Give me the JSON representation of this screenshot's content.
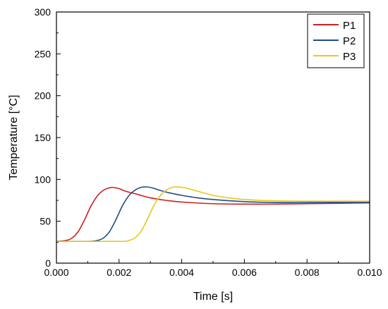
{
  "chart_data": {
    "type": "line",
    "xlabel": "Time [s]",
    "ylabel": "Temperature [°C]",
    "xlim": [
      0,
      0.01
    ],
    "ylim": [
      0,
      300
    ],
    "x_ticks": [
      "0.000",
      "0.002",
      "0.004",
      "0.006",
      "0.008",
      "0.010"
    ],
    "y_ticks": [
      "0",
      "50",
      "100",
      "150",
      "200",
      "250",
      "300"
    ],
    "grid": false,
    "legend_position": "top-right",
    "series": [
      {
        "name": "P1",
        "color": "#cc1f1f",
        "x": [
          0,
          0.0003,
          0.0005,
          0.0007,
          0.0009,
          0.0011,
          0.0013,
          0.0015,
          0.0017,
          0.0018,
          0.002,
          0.0022,
          0.0025,
          0.003,
          0.0035,
          0.004,
          0.005,
          0.006,
          0.007,
          0.008,
          0.009,
          0.01
        ],
        "y": [
          26,
          27,
          30,
          38,
          52,
          68,
          80,
          87,
          90,
          90.5,
          89,
          86,
          83,
          78,
          75,
          73,
          71,
          70.5,
          70.5,
          71,
          71.5,
          72
        ]
      },
      {
        "name": "P2",
        "color": "#1f4e8c",
        "x": [
          0,
          0.001,
          0.0013,
          0.0015,
          0.0017,
          0.0019,
          0.0021,
          0.0023,
          0.0025,
          0.0027,
          0.0029,
          0.0031,
          0.0033,
          0.0036,
          0.004,
          0.0045,
          0.005,
          0.006,
          0.007,
          0.008,
          0.009,
          0.01
        ],
        "y": [
          26,
          26,
          27,
          30,
          38,
          52,
          68,
          80,
          87,
          90.5,
          91,
          89.5,
          87,
          84,
          81,
          78,
          76,
          73.5,
          72.5,
          72.5,
          72.5,
          72.5
        ]
      },
      {
        "name": "P3",
        "color": "#e8c81a",
        "x": [
          0,
          0.002,
          0.0023,
          0.0025,
          0.0027,
          0.0029,
          0.0031,
          0.0033,
          0.0035,
          0.0037,
          0.0039,
          0.0041,
          0.0043,
          0.0046,
          0.005,
          0.0055,
          0.006,
          0.007,
          0.008,
          0.009,
          0.01
        ],
        "y": [
          26,
          26,
          27,
          30,
          38,
          52,
          68,
          80,
          87,
          90.5,
          91,
          90,
          88,
          85,
          81,
          78,
          76,
          74.5,
          74,
          74,
          74
        ]
      }
    ]
  }
}
